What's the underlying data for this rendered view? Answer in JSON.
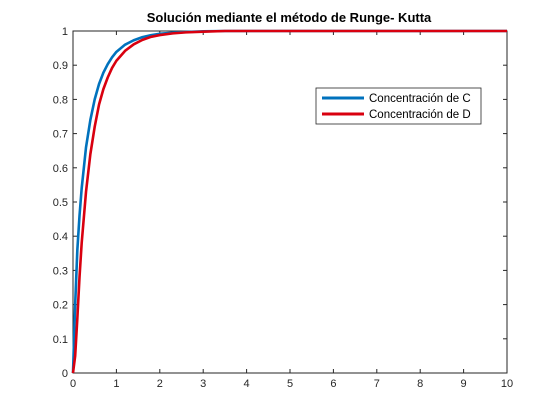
{
  "chart_data": {
    "type": "line",
    "title": "Solución mediante el método de Runge- Kutta",
    "xlabel": "",
    "ylabel": "",
    "xlim": [
      0,
      10
    ],
    "ylim": [
      0,
      1
    ],
    "xticks": [
      "0",
      "1",
      "2",
      "3",
      "4",
      "5",
      "6",
      "7",
      "8",
      "9",
      "10"
    ],
    "yticks": [
      "0",
      "0.1",
      "0.2",
      "0.3",
      "0.4",
      "0.5",
      "0.6",
      "0.7",
      "0.8",
      "0.9",
      "1"
    ],
    "grid": false,
    "legend_position": "top-right",
    "x": [
      0,
      0.05,
      0.1,
      0.15,
      0.2,
      0.3,
      0.4,
      0.5,
      0.6,
      0.7,
      0.8,
      0.9,
      1.0,
      1.2,
      1.4,
      1.6,
      1.8,
      2.0,
      2.3,
      2.6,
      3.0,
      3.5,
      4,
      5,
      6,
      7,
      8,
      9,
      10
    ],
    "series": [
      {
        "name": "Concentración de C",
        "color": "#0072BD",
        "values": [
          0,
          0.2,
          0.36,
          0.46,
          0.54,
          0.66,
          0.74,
          0.8,
          0.845,
          0.878,
          0.903,
          0.923,
          0.939,
          0.96,
          0.973,
          0.982,
          0.988,
          0.992,
          0.995,
          0.997,
          0.999,
          1.0,
          1.0,
          1.0,
          1.0,
          1.0,
          1.0,
          1.0,
          1.0
        ]
      },
      {
        "name": "Concentración de D",
        "color": "#D9000F",
        "values": [
          0,
          0.05,
          0.16,
          0.28,
          0.38,
          0.53,
          0.64,
          0.72,
          0.785,
          0.83,
          0.864,
          0.892,
          0.913,
          0.942,
          0.961,
          0.974,
          0.983,
          0.988,
          0.993,
          0.996,
          0.998,
          1.0,
          1.0,
          1.0,
          1.0,
          1.0,
          1.0,
          1.0,
          1.0
        ]
      }
    ]
  }
}
